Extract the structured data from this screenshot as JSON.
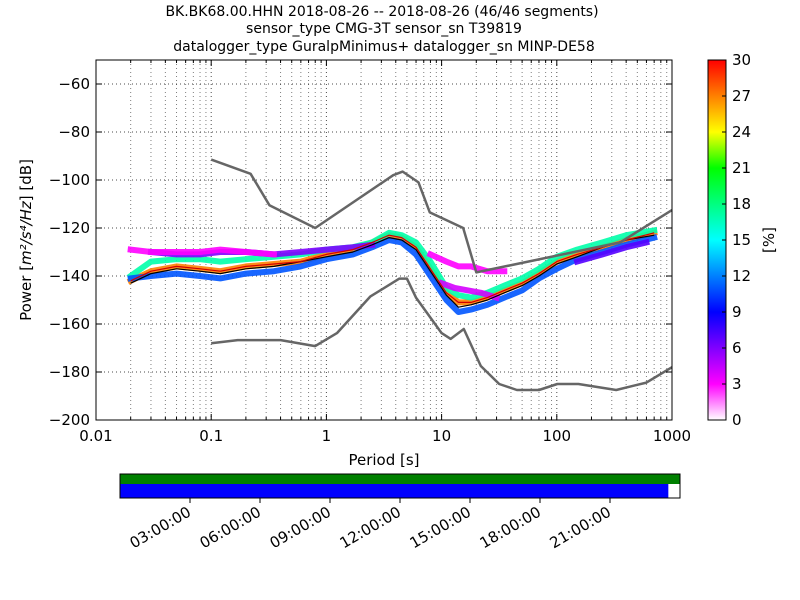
{
  "title_lines": [
    "BK.BK68.00.HHN   2018-08-26 -- 2018-08-26  (46/46 segments)",
    "sensor_type CMG-3T sensor_sn T39819",
    "datalogger_type GuralpMinimus+ datalogger_sn MINP-DE58"
  ],
  "chart_data": {
    "type": "heatmap",
    "xlabel": "Period [s]",
    "ylabel": "Power [m²/s⁴/Hz] [dB]",
    "ylabel_parts": {
      "prefix": "Power [",
      "unit": "m²/s⁴/Hz",
      "suffix": "] [dB]"
    },
    "x_scale": "log",
    "xlim": [
      0.01,
      1000
    ],
    "ylim": [
      -200,
      -50
    ],
    "x_ticks": [
      0.01,
      0.1,
      1,
      10,
      100,
      1000
    ],
    "x_tick_labels": [
      "0.01",
      "0.1",
      "1",
      "10",
      "100",
      "1000"
    ],
    "y_ticks": [
      -200,
      -180,
      -160,
      -140,
      -120,
      -100,
      -80,
      -60
    ],
    "y_tick_labels": [
      "−200",
      "−180",
      "−160",
      "−140",
      "−120",
      "−100",
      "−80",
      "−60"
    ],
    "grid": true,
    "colorbar": {
      "label": "[%]",
      "range": [
        0,
        30
      ],
      "ticks": [
        0,
        3,
        6,
        9,
        12,
        15,
        18,
        21,
        24,
        27,
        30
      ],
      "colors": [
        "#ffffff",
        "#ff00ff",
        "#8000ff",
        "#0000ff",
        "#0080ff",
        "#00ffff",
        "#00ff80",
        "#00ff00",
        "#ffff00",
        "#ff8000",
        "#ff0000"
      ]
    },
    "noise_model_high": {
      "period": [
        0.1,
        0.22,
        0.32,
        0.8,
        3.8,
        4.6,
        6.3,
        7.9,
        15.4,
        20,
        354.8,
        1000
      ],
      "db": [
        -91.5,
        -97.4,
        -110.5,
        -120,
        -98,
        -96.5,
        -101,
        -113.5,
        -120,
        -138.5,
        -126,
        -112.5
      ]
    },
    "noise_model_low": {
      "period": [
        0.1,
        0.17,
        0.4,
        0.8,
        1.24,
        2.4,
        4.3,
        5,
        6,
        10,
        12,
        15.6,
        21.9,
        31.6,
        45,
        70,
        101,
        154,
        328,
        600,
        1000
      ],
      "db": [
        -168,
        -166.7,
        -166.7,
        -169.2,
        -163.7,
        -148.6,
        -141.1,
        -141.1,
        -149,
        -163.8,
        -166.2,
        -162.1,
        -177.5,
        -185,
        -187.5,
        -187.5,
        -185,
        -185,
        -187.5,
        -184.4,
        -178
      ]
    },
    "median_curve": {
      "period": [
        0.02,
        0.03,
        0.05,
        0.08,
        0.12,
        0.2,
        0.35,
        0.6,
        1,
        1.7,
        2.5,
        3.5,
        4.5,
        6,
        8,
        11,
        14,
        18,
        25,
        35,
        50,
        70,
        100,
        150,
        250,
        400,
        700
      ],
      "db": [
        -142,
        -138,
        -136,
        -137,
        -138,
        -136,
        -135,
        -134,
        -131,
        -129,
        -126,
        -123,
        -124,
        -128,
        -137,
        -147,
        -151,
        -151,
        -149,
        -146,
        -143,
        -139,
        -134,
        -131,
        -128,
        -125,
        -122
      ]
    },
    "mode_curve": {
      "period": [
        0.02,
        0.03,
        0.05,
        0.08,
        0.12,
        0.2,
        0.35,
        0.6,
        1,
        1.7,
        2.5,
        3.5,
        4.5,
        6,
        8,
        11,
        14,
        18,
        25,
        35,
        50,
        70,
        100,
        150,
        250,
        400,
        700
      ],
      "db": [
        -143,
        -139,
        -137,
        -138,
        -139,
        -137,
        -136,
        -134,
        -132,
        -130,
        -127,
        -124,
        -125,
        -129,
        -138,
        -148,
        -153,
        -152,
        -150,
        -147,
        -144,
        -140,
        -135,
        -132,
        -128,
        -125,
        -123
      ]
    },
    "pdf_bands": [
      {
        "period": [
          0.02,
          0.03,
          0.05,
          0.08,
          0.12,
          0.2,
          0.35,
          0.6,
          1,
          1.7,
          2.5,
          3.5,
          4.5,
          6,
          8,
          11,
          14,
          18,
          25,
          35,
          50,
          70,
          100,
          150,
          250,
          400,
          700
        ],
        "db": [
          -142,
          -138,
          -136,
          -137,
          -138,
          -136,
          -135,
          -134,
          -131,
          -129,
          -126,
          -123,
          -124,
          -128,
          -137,
          -147,
          -151,
          -151,
          -149,
          -146,
          -143,
          -139,
          -134,
          -131,
          -128,
          -125,
          -122
        ],
        "pct": 27
      },
      {
        "period": [
          0.02,
          0.03,
          0.05,
          0.08,
          0.12,
          0.2,
          0.35,
          0.6,
          1,
          1.7,
          2.5,
          3.5,
          4.5,
          6,
          8,
          11,
          14,
          18,
          25,
          35,
          50,
          70,
          100,
          150,
          250,
          400,
          700
        ],
        "db": [
          -140,
          -134,
          -133,
          -133,
          -134,
          -133,
          -132,
          -131,
          -129,
          -128,
          -126,
          -122,
          -123,
          -126,
          -134,
          -145,
          -148,
          -149,
          -147,
          -144,
          -141,
          -137,
          -132,
          -129,
          -126,
          -123,
          -121
        ],
        "pct": 17
      },
      {
        "period": [
          0.02,
          0.03,
          0.05,
          0.08,
          0.12,
          0.2,
          0.35,
          0.6,
          1,
          1.7,
          2.5,
          3.5,
          4.5,
          6,
          8,
          11,
          14,
          18,
          25,
          35,
          50,
          70,
          100,
          150,
          250,
          400,
          700
        ],
        "db": [
          -141,
          -140,
          -139,
          -140,
          -141,
          -139,
          -138,
          -136,
          -133,
          -131,
          -128,
          -125,
          -126,
          -131,
          -140,
          -150,
          -155,
          -154,
          -152,
          -149,
          -146,
          -141,
          -137,
          -133,
          -130,
          -127,
          -124
        ],
        "pct": 11
      },
      {
        "period": [
          0.03,
          0.05,
          0.08,
          0.12,
          0.2,
          0.35,
          0.6,
          1,
          1.7,
          2.5
        ],
        "db": [
          -130,
          -131,
          -131,
          -130,
          -130,
          -131,
          -130,
          -129,
          -128,
          -127
        ],
        "pct": 6
      },
      {
        "period": [
          0.02,
          0.03,
          0.05,
          0.08,
          0.12,
          0.2,
          0.35
        ],
        "db": [
          -129,
          -130,
          -130,
          -130,
          -129,
          -130,
          -131
        ],
        "pct": 3
      },
      {
        "period": [
          8,
          11,
          14,
          18,
          25,
          35
        ],
        "db": [
          -131,
          -134,
          -136,
          -136,
          -138,
          -138
        ],
        "pct": 3
      },
      {
        "period": [
          10,
          13,
          17,
          22,
          30
        ],
        "db": [
          -143,
          -145,
          -146,
          -147,
          -149
        ],
        "pct": 4
      },
      {
        "period": [
          150,
          250,
          400,
          600
        ],
        "db": [
          -134,
          -131,
          -128,
          -126
        ],
        "pct": 7
      }
    ]
  },
  "time_axis": {
    "tick_labels": [
      "03:00:00",
      "06:00:00",
      "09:00:00",
      "12:00:00",
      "15:00:00",
      "18:00:00",
      "21:00:00"
    ],
    "tick_hours": [
      3,
      6,
      9,
      12,
      15,
      18,
      21
    ],
    "range_hours": [
      0,
      24
    ],
    "data_coverage": {
      "start_hour": 0,
      "end_hour": 23.5,
      "color": "#0000ff"
    },
    "processed_coverage": {
      "start_hour": 0,
      "end_hour": 24,
      "color": "#008000"
    }
  }
}
